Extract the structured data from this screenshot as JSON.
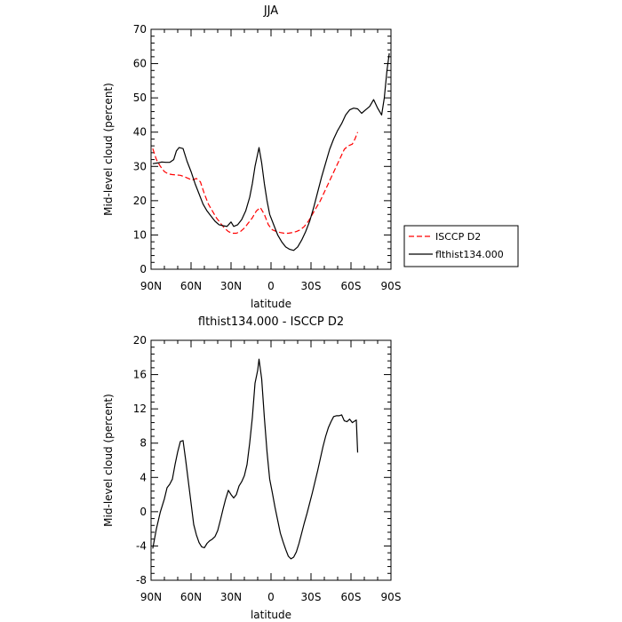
{
  "chart_data": [
    {
      "type": "line",
      "title": "JJA",
      "xlabel": "latitude",
      "ylabel": "Mid-level cloud (percent)",
      "xlim": [
        90,
        -90
      ],
      "ylim": [
        0,
        70
      ],
      "xticks": [
        {
          "value": 90,
          "label": "90N"
        },
        {
          "value": 60,
          "label": "60N"
        },
        {
          "value": 30,
          "label": "30N"
        },
        {
          "value": 0,
          "label": "0"
        },
        {
          "value": -30,
          "label": "30S"
        },
        {
          "value": -60,
          "label": "60S"
        },
        {
          "value": -90,
          "label": "90S"
        }
      ],
      "yticks": [
        0,
        10,
        20,
        30,
        40,
        50,
        60,
        70
      ],
      "legend": "right",
      "series": [
        {
          "name": "ISCCP D2",
          "style": "dashed",
          "color": "#ff0000",
          "points": [
            [
              88.75,
              35.2
            ],
            [
              86,
              32
            ],
            [
              83,
              30
            ],
            [
              80,
              28.5
            ],
            [
              77,
              27.8
            ],
            [
              74,
              27.6
            ],
            [
              71,
              27.5
            ],
            [
              68,
              27.4
            ],
            [
              65,
              27
            ],
            [
              62,
              26.5
            ],
            [
              59,
              26
            ],
            [
              56,
              26.5
            ],
            [
              53,
              25.5
            ],
            [
              50,
              22
            ],
            [
              47,
              19
            ],
            [
              44,
              17
            ],
            [
              41,
              15
            ],
            [
              38,
              13.5
            ],
            [
              35,
              12
            ],
            [
              32,
              11
            ],
            [
              29,
              10.5
            ],
            [
              26,
              10.5
            ],
            [
              23,
              11
            ],
            [
              20,
              12
            ],
            [
              17,
              13.5
            ],
            [
              14,
              15
            ],
            [
              11,
              17
            ],
            [
              8,
              18
            ],
            [
              5,
              16
            ],
            [
              2,
              13
            ],
            [
              -1,
              11.5
            ],
            [
              -4,
              11
            ],
            [
              -7,
              10.7
            ],
            [
              -10,
              10.5
            ],
            [
              -13,
              10.5
            ],
            [
              -16,
              10.7
            ],
            [
              -19,
              11
            ],
            [
              -22,
              11.5
            ],
            [
              -25,
              12.5
            ],
            [
              -28,
              14
            ],
            [
              -31,
              16
            ],
            [
              -34,
              18
            ],
            [
              -37,
              20
            ],
            [
              -40,
              22.5
            ],
            [
              -43,
              25
            ],
            [
              -46,
              27.5
            ],
            [
              -49,
              30
            ],
            [
              -52,
              32.5
            ],
            [
              -55,
              35
            ],
            [
              -58,
              36
            ],
            [
              -61,
              36.5
            ],
            [
              -63,
              38
            ],
            [
              -65,
              40
            ]
          ]
        },
        {
          "name": "flthist134.000",
          "style": "solid",
          "color": "#000000",
          "points": [
            [
              88.75,
              30.8
            ],
            [
              85,
              31
            ],
            [
              82,
              31.3
            ],
            [
              79,
              31.2
            ],
            [
              76,
              31.2
            ],
            [
              73,
              32
            ],
            [
              71,
              34.5
            ],
            [
              69,
              35.5
            ],
            [
              66,
              35.2
            ],
            [
              63,
              31.5
            ],
            [
              60,
              28.5
            ],
            [
              57,
              25
            ],
            [
              54,
              22
            ],
            [
              51,
              19
            ],
            [
              48,
              17
            ],
            [
              45,
              15.5
            ],
            [
              42,
              14
            ],
            [
              39,
              13
            ],
            [
              36,
              12.7
            ],
            [
              33,
              12.5
            ],
            [
              30,
              13.8
            ],
            [
              28,
              12.5
            ],
            [
              25,
              13
            ],
            [
              22,
              14.5
            ],
            [
              19,
              17
            ],
            [
              16,
              21
            ],
            [
              14,
              25
            ],
            [
              12,
              30
            ],
            [
              9,
              35.5
            ],
            [
              7,
              31
            ],
            [
              5,
              25
            ],
            [
              3,
              20
            ],
            [
              1,
              16
            ],
            [
              -2,
              13
            ],
            [
              -5,
              10
            ],
            [
              -8,
              8
            ],
            [
              -11,
              6.5
            ],
            [
              -14,
              5.8
            ],
            [
              -17,
              5.5
            ],
            [
              -20,
              6.5
            ],
            [
              -23,
              8.5
            ],
            [
              -26,
              11
            ],
            [
              -29,
              14
            ],
            [
              -32,
              18
            ],
            [
              -35,
              22.5
            ],
            [
              -38,
              27
            ],
            [
              -41,
              31
            ],
            [
              -44,
              35
            ],
            [
              -47,
              38
            ],
            [
              -50,
              40.5
            ],
            [
              -53,
              42.5
            ],
            [
              -56,
              45
            ],
            [
              -59,
              46.5
            ],
            [
              -62,
              47
            ],
            [
              -65,
              46.8
            ],
            [
              -68,
              45.5
            ],
            [
              -71,
              46.5
            ],
            [
              -74,
              47.5
            ],
            [
              -77,
              49.5
            ],
            [
              -80,
              47
            ],
            [
              -83,
              45
            ],
            [
              -85,
              50
            ],
            [
              -87,
              58
            ],
            [
              -88.75,
              63
            ]
          ]
        }
      ]
    },
    {
      "type": "line",
      "title": "flthist134.000 - ISCCP D2",
      "xlabel": "latitude",
      "ylabel": "Mid-level cloud (percent)",
      "xlim": [
        90,
        -90
      ],
      "ylim": [
        -8,
        20
      ],
      "xticks": [
        {
          "value": 90,
          "label": "90N"
        },
        {
          "value": 60,
          "label": "60N"
        },
        {
          "value": 30,
          "label": "30N"
        },
        {
          "value": 0,
          "label": "0"
        },
        {
          "value": -30,
          "label": "30S"
        },
        {
          "value": -60,
          "label": "60S"
        },
        {
          "value": -90,
          "label": "90S"
        }
      ],
      "yticks": [
        -8,
        -4,
        0,
        4,
        8,
        12,
        16,
        20
      ],
      "series": [
        {
          "color": "#000000",
          "points": [
            [
              88.75,
              -4.3
            ],
            [
              86,
              -2
            ],
            [
              83,
              0
            ],
            [
              80,
              1.5
            ],
            [
              78,
              2.8
            ],
            [
              76,
              3.2
            ],
            [
              74,
              3.8
            ],
            [
              72,
              5.5
            ],
            [
              70,
              7
            ],
            [
              68,
              8.2
            ],
            [
              66,
              8.3
            ],
            [
              64,
              6
            ],
            [
              62,
              3.5
            ],
            [
              60,
              1
            ],
            [
              58,
              -1.5
            ],
            [
              56,
              -2.7
            ],
            [
              54,
              -3.6
            ],
            [
              52,
              -4.1
            ],
            [
              50,
              -4.2
            ],
            [
              48,
              -3.7
            ],
            [
              46,
              -3.4
            ],
            [
              44,
              -3.2
            ],
            [
              42,
              -2.9
            ],
            [
              40,
              -2.2
            ],
            [
              38,
              -1
            ],
            [
              36,
              0.3
            ],
            [
              34,
              1.5
            ],
            [
              32,
              2.5
            ],
            [
              30,
              2
            ],
            [
              28,
              1.6
            ],
            [
              26,
              2
            ],
            [
              24,
              3
            ],
            [
              22,
              3.5
            ],
            [
              20,
              4.2
            ],
            [
              18,
              5.5
            ],
            [
              16,
              8
            ],
            [
              14,
              11
            ],
            [
              12,
              15
            ],
            [
              10,
              16.5
            ],
            [
              9,
              17.8
            ],
            [
              7,
              15.5
            ],
            [
              5,
              11
            ],
            [
              3,
              7
            ],
            [
              1,
              3.8
            ],
            [
              -1,
              2.2
            ],
            [
              -3,
              0.5
            ],
            [
              -5,
              -1
            ],
            [
              -7,
              -2.5
            ],
            [
              -9,
              -3.5
            ],
            [
              -11,
              -4.4
            ],
            [
              -13,
              -5.2
            ],
            [
              -15,
              -5.5
            ],
            [
              -17,
              -5.3
            ],
            [
              -19,
              -4.7
            ],
            [
              -21,
              -3.7
            ],
            [
              -23,
              -2.5
            ],
            [
              -25,
              -1.3
            ],
            [
              -27,
              -0.2
            ],
            [
              -29,
              1
            ],
            [
              -31,
              2.2
            ],
            [
              -33,
              3.5
            ],
            [
              -35,
              4.8
            ],
            [
              -37,
              6.2
            ],
            [
              -39,
              7.6
            ],
            [
              -41,
              8.8
            ],
            [
              -43,
              9.8
            ],
            [
              -45,
              10.5
            ],
            [
              -47,
              11.1
            ],
            [
              -49,
              11.2
            ],
            [
              -51,
              11.2
            ],
            [
              -53,
              11.3
            ],
            [
              -55,
              10.6
            ],
            [
              -57,
              10.5
            ],
            [
              -59,
              10.8
            ],
            [
              -61,
              10.4
            ],
            [
              -63,
              10.6
            ],
            [
              -64,
              10.7
            ],
            [
              -65,
              6.9
            ]
          ]
        }
      ]
    }
  ]
}
